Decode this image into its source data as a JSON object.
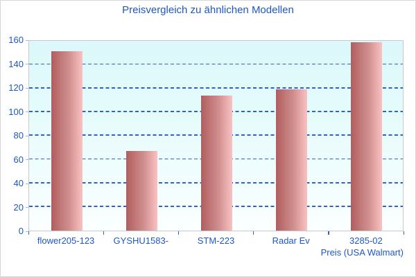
{
  "chart_data": {
    "type": "bar",
    "title": "Preisvergleich zu ähnlichen Modellen",
    "categories": [
      "flower205-123",
      "GYSHU1583-",
      "STM-223",
      "Radar Ev",
      "3285-02"
    ],
    "values": [
      151,
      67,
      114,
      119,
      159
    ],
    "xlabel": "Preis (USA Walmart)",
    "ylabel": "",
    "ylim": [
      0,
      160
    ],
    "yticks": [
      0,
      20,
      40,
      60,
      80,
      100,
      120,
      140,
      160
    ],
    "grid": "horizontal-dashed",
    "legend_position": "none",
    "colors": {
      "title_text": "#1e56c8",
      "axis_text": "#1e56c8",
      "gridline": "#2f62c6",
      "bar_gradient_left": "#b05e5e",
      "bar_gradient_right": "#f9c2c2",
      "plot_background_top": "#dcf8fa",
      "plot_background_bottom": "#fbffff",
      "plot_border": "#c9c9c9"
    }
  }
}
